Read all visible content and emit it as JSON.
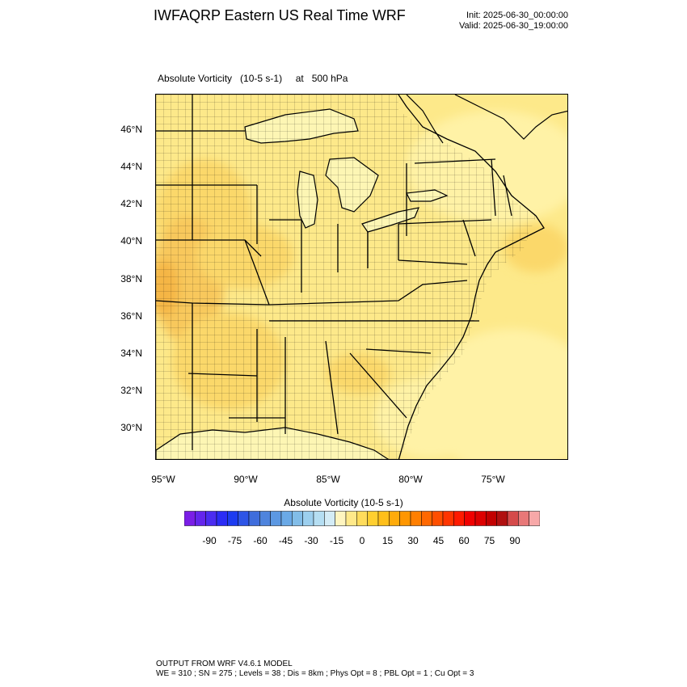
{
  "header": {
    "title": "IWFAQRP Eastern US Real Time WRF",
    "init": "Init: 2025-06-30_00:00:00",
    "valid": "Valid: 2025-06-30_19:00:00"
  },
  "field": {
    "title": "Absolute Vorticity   (10-5 s-1)     at   500 hPa"
  },
  "map": {
    "lat_labels": [
      "46°N",
      "44°N",
      "42°N",
      "40°N",
      "38°N",
      "36°N",
      "34°N",
      "32°N",
      "30°N"
    ],
    "lon_labels": [
      "95°W",
      "90°W",
      "85°W",
      "80°W",
      "75°W"
    ],
    "colors": {
      "fill_base": "#fde98a",
      "fill_light": "#fff2a6",
      "fill_mid": "#fbd86a",
      "fill_orange": "#f5b545",
      "water": "#fdf6b4",
      "boundary": "#000000"
    }
  },
  "colorbar": {
    "title": "Absolute Vorticity  (10-5 s-1)",
    "labels": [
      "-90",
      "-75",
      "-60",
      "-45",
      "-30",
      "-15",
      "0",
      "15",
      "30",
      "45",
      "60",
      "75",
      "90"
    ],
    "colors": [
      "#7a1ee6",
      "#6425ec",
      "#4b2cf0",
      "#2b2cf5",
      "#1d3cf0",
      "#2e55e6",
      "#3f6ddc",
      "#4f84dd",
      "#5c98e2",
      "#6aa9e6",
      "#82bde8",
      "#9ccfee",
      "#b5def2",
      "#d4ecf6",
      "#fff5c0",
      "#ffe98a",
      "#ffdc5c",
      "#ffcf30",
      "#ffbf1a",
      "#ffab0a",
      "#ff9600",
      "#ff7f00",
      "#ff6800",
      "#ff4f00",
      "#ff3500",
      "#ff1a00",
      "#f00000",
      "#dd0000",
      "#c20000",
      "#b01010",
      "#d54a4a",
      "#e87878",
      "#f7a8a8"
    ]
  },
  "footer": {
    "line1": "OUTPUT FROM WRF V4.6.1 MODEL",
    "line2": "WE = 310 ; SN = 275 ; Levels = 38 ; Dis = 8km ; Phys Opt = 8 ; PBL Opt = 1 ; Cu Opt = 3"
  }
}
